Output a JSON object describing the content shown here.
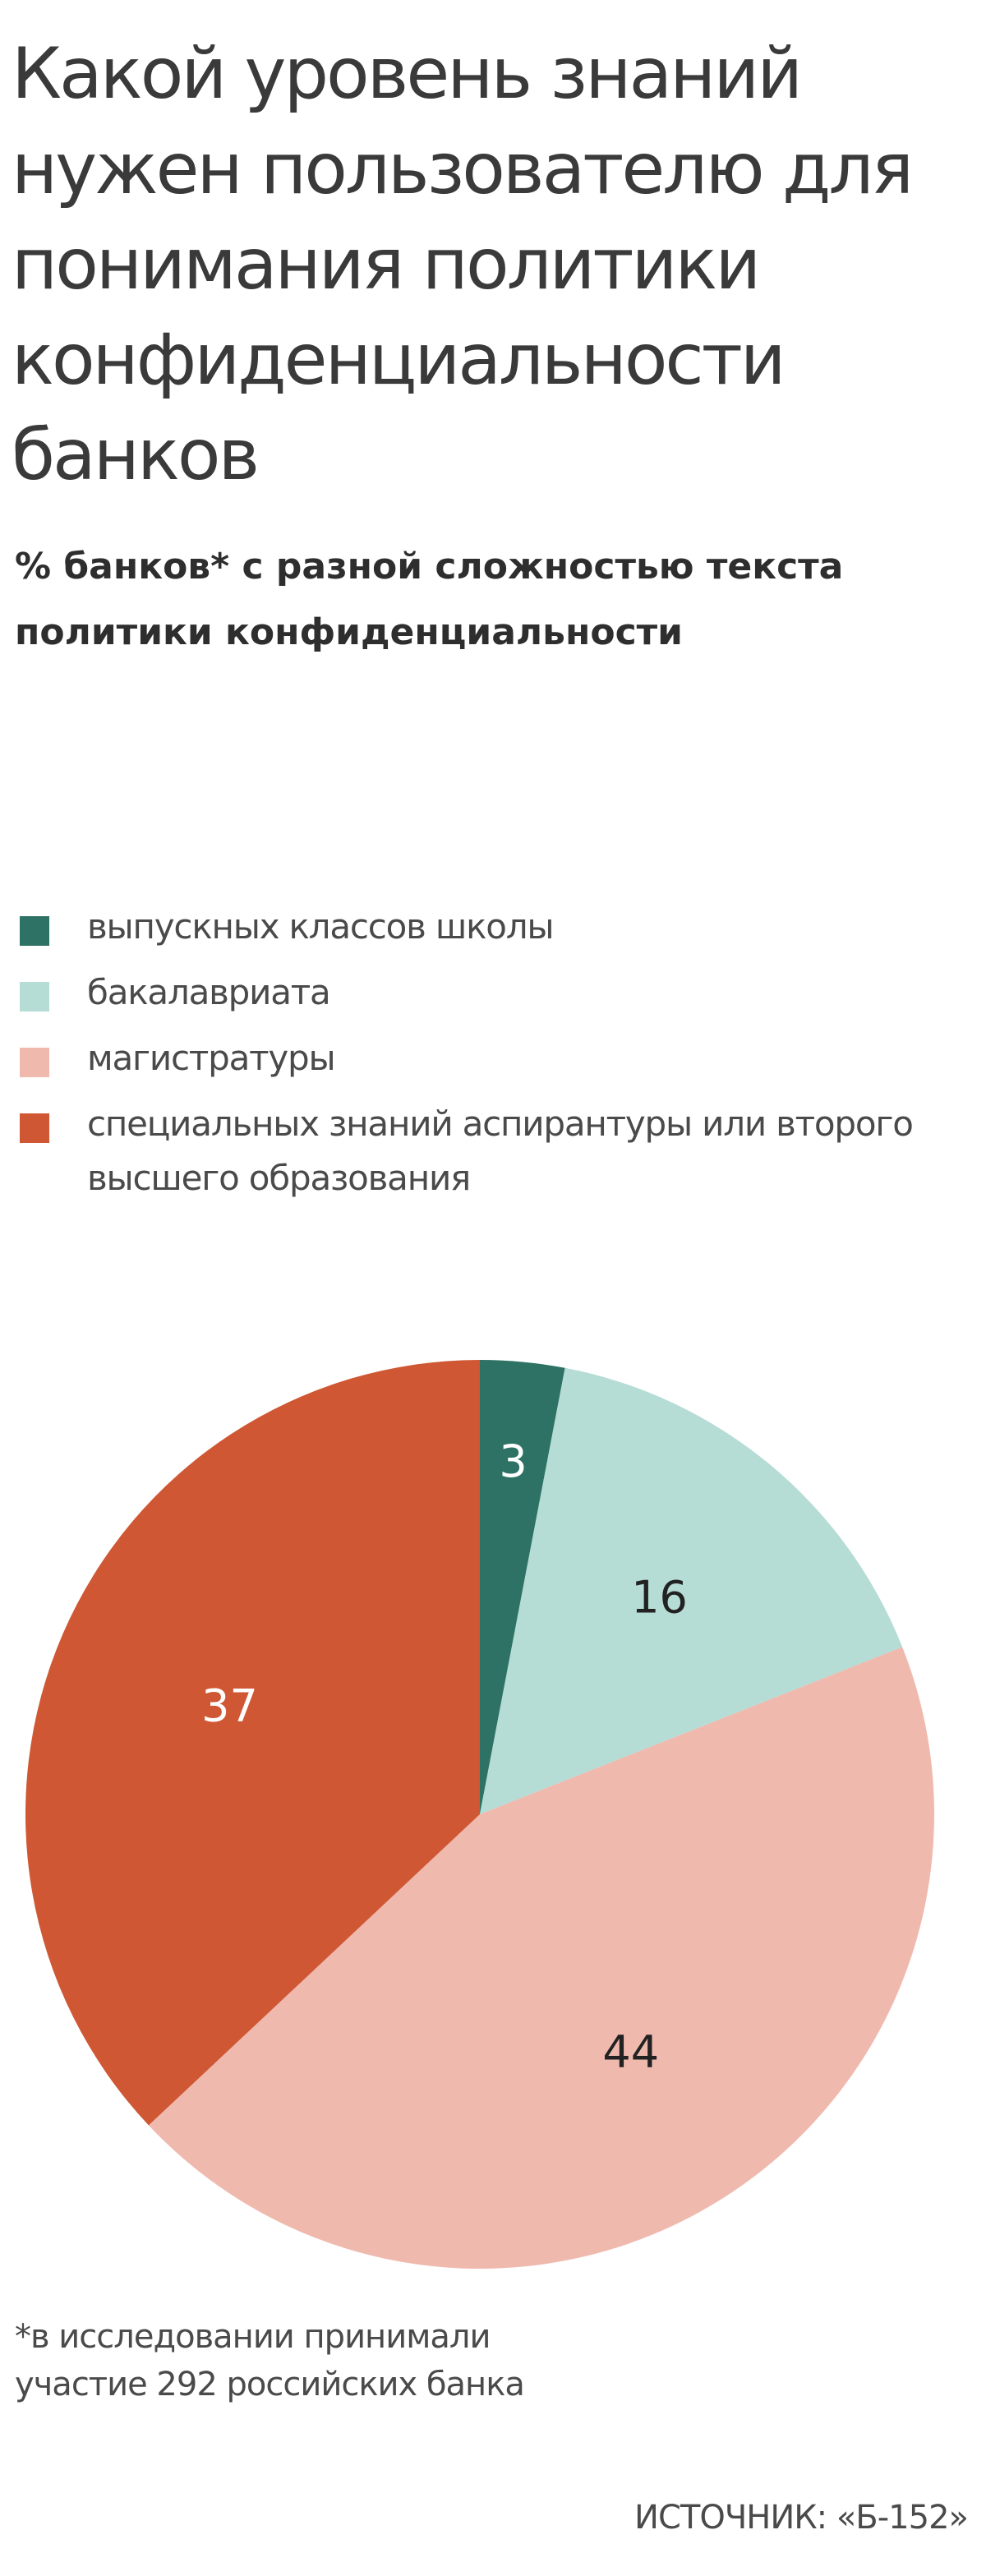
{
  "header": {
    "title": "Какой уровень знаний нужен пользователю для понимания политики конфиденциальности банков",
    "subtitle": "% банков* с разной сложностью текста политики конфиденциальности"
  },
  "footnote": "*в исследовании принимали участие 292 российских банка",
  "source": "ИСТОЧНИК: «Б-152»",
  "chart_data": {
    "type": "pie",
    "title": "Какой уровень знаний нужен пользователю для понимания политики конфиденциальности банков",
    "subtitle": "% банков* с разной сложностью текста политики конфиденциальности",
    "legend_position": "top",
    "start_angle": "12 o'clock",
    "direction": "clockwise",
    "slices": [
      {
        "label": "выпускных классов школы",
        "value": 3,
        "color": "#2e7165",
        "label_color": "#ffffff"
      },
      {
        "label": "бакалавриата",
        "value": 16,
        "color": "#b5dcd5",
        "label_color": "#222222"
      },
      {
        "label": "магистратуры",
        "value": 44,
        "color": "#f0b9ae",
        "label_color": "#222222"
      },
      {
        "label": "специальных знаний аспирантуры или второго высшего образования",
        "value": 37,
        "color": "#cf5733",
        "label_color": "#ffffff"
      }
    ]
  }
}
